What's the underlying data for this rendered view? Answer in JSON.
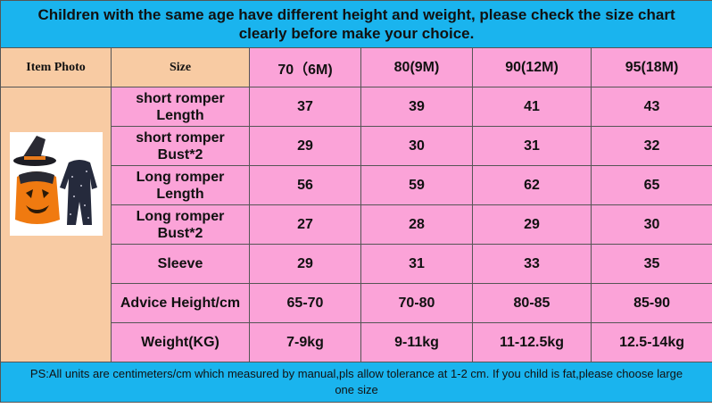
{
  "header": {
    "title": "Children with the same age have different height and weight, please check the size chart clearly before make your choice."
  },
  "table": {
    "columns": [
      "Item Photo",
      "Size",
      "70（6M)",
      "80(9M)",
      "90(12M)",
      "95(18M)"
    ],
    "rows": [
      [
        "short romper\nLength",
        "37",
        "39",
        "41",
        "43"
      ],
      [
        "short romper\nBust*2",
        "29",
        "30",
        "31",
        "32"
      ],
      [
        "Long romper\nLength",
        "56",
        "59",
        "62",
        "65"
      ],
      [
        "Long romper\nBust*2",
        "27",
        "28",
        "29",
        "30"
      ],
      [
        "Sleeve",
        "29",
        "31",
        "33",
        "35"
      ],
      [
        "Advice Height/cm",
        "65-70",
        "70-80",
        "80-85",
        "85-90"
      ],
      [
        "Weight(KG)",
        "7-9kg",
        "9-11kg",
        "11-12.5kg",
        "12.5-14kg"
      ]
    ]
  },
  "footer": {
    "note": "PS:All units are centimeters/cm which measured by manual,pls allow tolerance at 1-2 cm. If you child is fat,please choose large one size"
  }
}
